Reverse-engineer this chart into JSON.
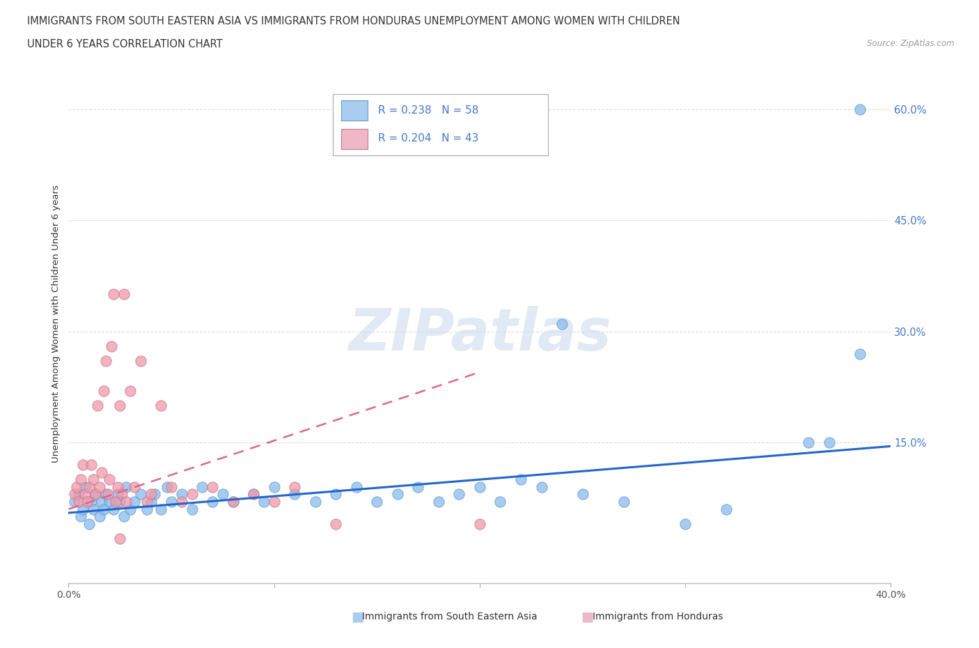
{
  "title_line1": "IMMIGRANTS FROM SOUTH EASTERN ASIA VS IMMIGRANTS FROM HONDURAS UNEMPLOYMENT AMONG WOMEN WITH CHILDREN",
  "title_line2": "UNDER 6 YEARS CORRELATION CHART",
  "source": "Source: ZipAtlas.com",
  "ylabel": "Unemployment Among Women with Children Under 6 years",
  "watermark": "ZIPatlas",
  "yticks": [
    0.0,
    0.15,
    0.3,
    0.45,
    0.6
  ],
  "ytick_labels": [
    "",
    "15.0%",
    "30.0%",
    "45.0%",
    "60.0%"
  ],
  "xmin": 0.0,
  "xmax": 0.4,
  "ymin": -0.04,
  "ymax": 0.66,
  "blue_scatter": [
    [
      0.003,
      0.07
    ],
    [
      0.005,
      0.08
    ],
    [
      0.006,
      0.05
    ],
    [
      0.007,
      0.06
    ],
    [
      0.008,
      0.09
    ],
    [
      0.01,
      0.04
    ],
    [
      0.011,
      0.07
    ],
    [
      0.012,
      0.06
    ],
    [
      0.013,
      0.08
    ],
    [
      0.015,
      0.05
    ],
    [
      0.016,
      0.07
    ],
    [
      0.017,
      0.06
    ],
    [
      0.018,
      0.08
    ],
    [
      0.02,
      0.07
    ],
    [
      0.022,
      0.06
    ],
    [
      0.024,
      0.08
    ],
    [
      0.025,
      0.07
    ],
    [
      0.027,
      0.05
    ],
    [
      0.028,
      0.09
    ],
    [
      0.03,
      0.06
    ],
    [
      0.032,
      0.07
    ],
    [
      0.035,
      0.08
    ],
    [
      0.038,
      0.06
    ],
    [
      0.04,
      0.07
    ],
    [
      0.042,
      0.08
    ],
    [
      0.045,
      0.06
    ],
    [
      0.048,
      0.09
    ],
    [
      0.05,
      0.07
    ],
    [
      0.055,
      0.08
    ],
    [
      0.06,
      0.06
    ],
    [
      0.065,
      0.09
    ],
    [
      0.07,
      0.07
    ],
    [
      0.075,
      0.08
    ],
    [
      0.08,
      0.07
    ],
    [
      0.09,
      0.08
    ],
    [
      0.095,
      0.07
    ],
    [
      0.1,
      0.09
    ],
    [
      0.11,
      0.08
    ],
    [
      0.12,
      0.07
    ],
    [
      0.13,
      0.08
    ],
    [
      0.14,
      0.09
    ],
    [
      0.15,
      0.07
    ],
    [
      0.16,
      0.08
    ],
    [
      0.17,
      0.09
    ],
    [
      0.18,
      0.07
    ],
    [
      0.19,
      0.08
    ],
    [
      0.2,
      0.09
    ],
    [
      0.21,
      0.07
    ],
    [
      0.22,
      0.1
    ],
    [
      0.23,
      0.09
    ],
    [
      0.24,
      0.31
    ],
    [
      0.25,
      0.08
    ],
    [
      0.27,
      0.07
    ],
    [
      0.3,
      0.04
    ],
    [
      0.32,
      0.06
    ],
    [
      0.36,
      0.15
    ],
    [
      0.37,
      0.15
    ],
    [
      0.385,
      0.27
    ]
  ],
  "blue_outlier": [
    [
      0.385,
      0.6
    ]
  ],
  "pink_scatter": [
    [
      0.003,
      0.08
    ],
    [
      0.004,
      0.09
    ],
    [
      0.005,
      0.07
    ],
    [
      0.006,
      0.1
    ],
    [
      0.007,
      0.12
    ],
    [
      0.008,
      0.08
    ],
    [
      0.009,
      0.07
    ],
    [
      0.01,
      0.09
    ],
    [
      0.011,
      0.12
    ],
    [
      0.012,
      0.1
    ],
    [
      0.013,
      0.08
    ],
    [
      0.014,
      0.2
    ],
    [
      0.015,
      0.09
    ],
    [
      0.016,
      0.11
    ],
    [
      0.017,
      0.22
    ],
    [
      0.018,
      0.26
    ],
    [
      0.019,
      0.08
    ],
    [
      0.02,
      0.1
    ],
    [
      0.021,
      0.28
    ],
    [
      0.022,
      0.35
    ],
    [
      0.023,
      0.07
    ],
    [
      0.024,
      0.09
    ],
    [
      0.025,
      0.2
    ],
    [
      0.026,
      0.08
    ],
    [
      0.027,
      0.35
    ],
    [
      0.028,
      0.07
    ],
    [
      0.03,
      0.22
    ],
    [
      0.032,
      0.09
    ],
    [
      0.035,
      0.26
    ],
    [
      0.038,
      0.07
    ],
    [
      0.04,
      0.08
    ],
    [
      0.045,
      0.2
    ],
    [
      0.05,
      0.09
    ],
    [
      0.055,
      0.07
    ],
    [
      0.06,
      0.08
    ],
    [
      0.07,
      0.09
    ],
    [
      0.08,
      0.07
    ],
    [
      0.09,
      0.08
    ],
    [
      0.1,
      0.07
    ],
    [
      0.11,
      0.09
    ],
    [
      0.13,
      0.04
    ],
    [
      0.2,
      0.04
    ],
    [
      0.025,
      0.02
    ]
  ],
  "blue_line_x": [
    0.0,
    0.4
  ],
  "blue_line_y": [
    0.055,
    0.145
  ],
  "pink_line_x": [
    0.0,
    0.2
  ],
  "pink_line_y": [
    0.06,
    0.245
  ],
  "blue_line_color": "#2266cc",
  "pink_line_color": "#dd6688",
  "scatter_blue_color": "#88bbee",
  "scatter_pink_color": "#ee99aa",
  "scatter_blue_edge": "#6699cc",
  "scatter_pink_edge": "#cc7788",
  "background_color": "#ffffff",
  "grid_color": "#dddddd",
  "legend_blue_fill": "#aaccee",
  "legend_pink_fill": "#eeb8c8",
  "text_color": "#333333",
  "axis_label_color": "#4477cc"
}
